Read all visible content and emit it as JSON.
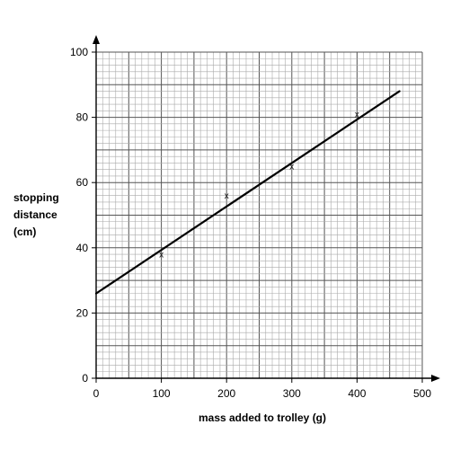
{
  "chart_data": {
    "type": "scatter",
    "title": "",
    "xlabel": "mass added to trolley (g)",
    "ylabel_lines": [
      "stopping",
      "distance",
      "(cm)"
    ],
    "xlim": [
      0,
      500
    ],
    "ylim": [
      0,
      100
    ],
    "x_ticks": [
      0,
      100,
      200,
      300,
      400,
      500
    ],
    "y_ticks": [
      0,
      20,
      40,
      60,
      80,
      100
    ],
    "grid": true,
    "marker_symbol": "x",
    "points": [
      {
        "x": 100,
        "y": 38
      },
      {
        "x": 200,
        "y": 56
      },
      {
        "x": 300,
        "y": 65
      },
      {
        "x": 400,
        "y": 81
      }
    ],
    "best_fit_line": {
      "x_start": 0,
      "y_start": 26,
      "x_end": 465,
      "y_end": 88
    }
  }
}
